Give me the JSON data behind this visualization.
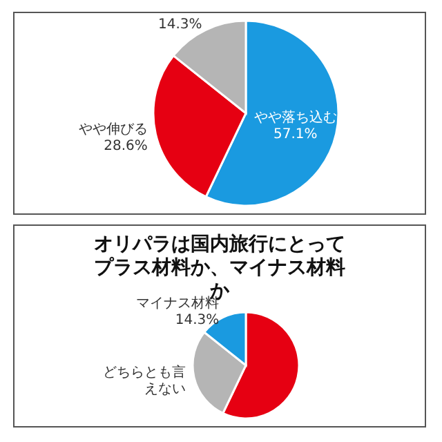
{
  "chart_data": [
    {
      "type": "pie",
      "categories": [
        "やや落ち込む",
        "やや伸びる",
        null
      ],
      "values": [
        57.1,
        28.6,
        14.3
      ],
      "colors": [
        "#1a9ae0",
        "#e60012",
        "#b5b5b5"
      ],
      "value_labels": [
        "57.1%",
        "28.6%",
        "14.3%"
      ]
    },
    {
      "type": "pie",
      "title": "オリパラは国内旅行にとってプラス材料か、マイナス材料か",
      "categories": [
        null,
        "どちらとも言えない",
        "マイナス材料"
      ],
      "values": [
        57.1,
        28.6,
        14.3
      ],
      "colors": [
        "#e60012",
        "#b5b5b5",
        "#1a9ae0"
      ],
      "value_labels": [
        null,
        null,
        "14.3%"
      ]
    }
  ]
}
